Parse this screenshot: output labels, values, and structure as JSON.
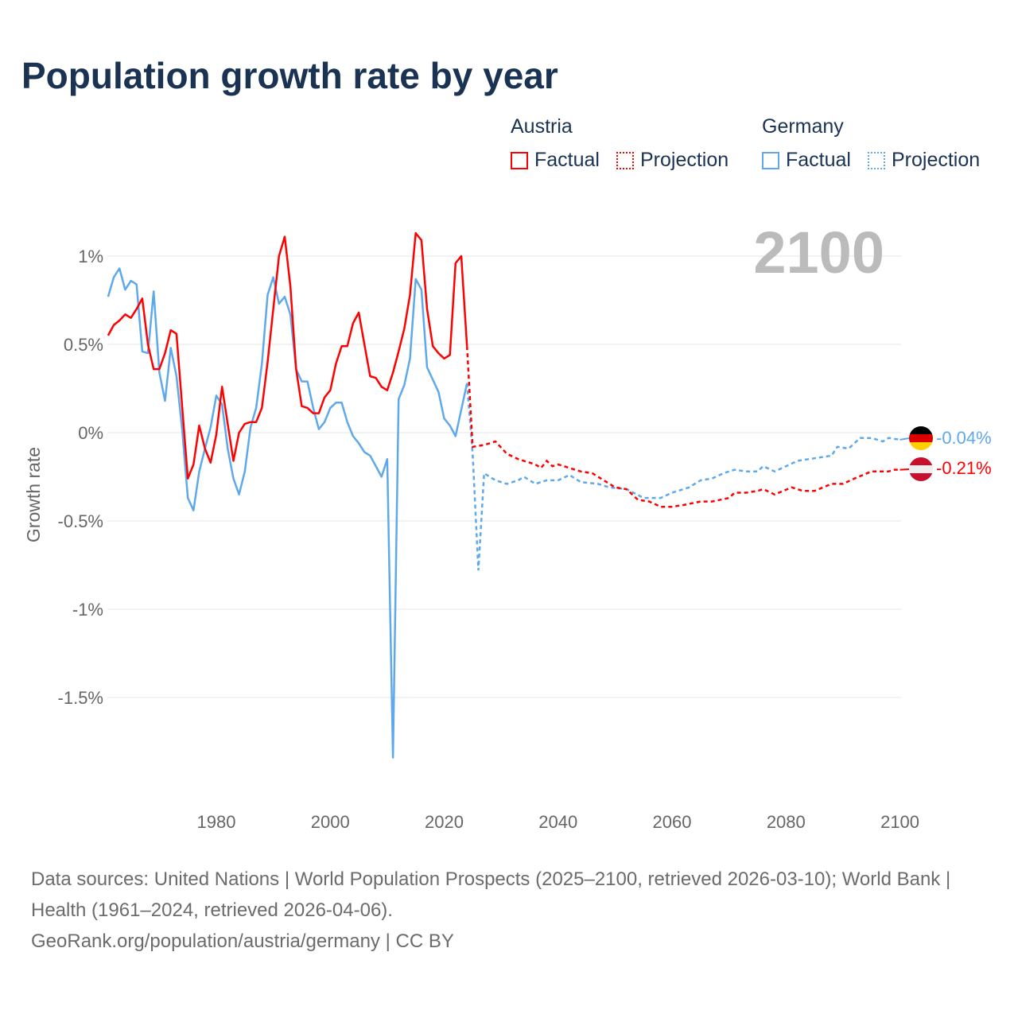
{
  "title": "Population growth rate by year",
  "legend": {
    "austria": {
      "name": "Austria",
      "factual": "Factual",
      "projection": "Projection"
    },
    "germany": {
      "name": "Germany",
      "factual": "Factual",
      "projection": "Projection"
    }
  },
  "footer": {
    "sources": "Data sources: United Nations | World Population Prospects (2025–2100, retrieved 2026-03-10); World Bank | Health (1961–2024, retrieved 2026-04-06).",
    "credit": "GeoRank.org/population/austria/germany | CC BY"
  },
  "colors": {
    "austria": "#ff0000",
    "germany": "#5ea8ec",
    "title": "#1b3353",
    "year": "#bbbbbb"
  },
  "chart_data": {
    "type": "line",
    "title": "Population growth rate by year",
    "ylabel": "Growth rate",
    "xlabel": "",
    "current_year_label": "2100",
    "xlim": [
      1961,
      2100
    ],
    "ylim": [
      -1.9,
      1.15
    ],
    "yticks": [
      1,
      0.5,
      0,
      -0.5,
      -1,
      -1.5
    ],
    "ytick_labels": [
      "1%",
      "0.5%",
      "0%",
      "-0.5%",
      "-1%",
      "-1.5%"
    ],
    "xticks": [
      1980,
      2000,
      2020,
      2040,
      2060,
      2080,
      2100
    ],
    "xtick_labels": [
      "1980",
      "2000",
      "2020",
      "2040",
      "2060",
      "2080",
      "2100"
    ],
    "grid": true,
    "series": [
      {
        "name": "Austria",
        "color": "#ff0000",
        "end_label": "-0.21%",
        "factual": {
          "start_year": 1961,
          "values": [
            0.55,
            0.61,
            0.635,
            0.67,
            0.65,
            0.7,
            0.76,
            0.5,
            0.36,
            0.36,
            0.45,
            0.58,
            0.56,
            0.15,
            -0.26,
            -0.18,
            0.04,
            -0.09,
            -0.17,
            -0.01,
            0.26,
            0.05,
            -0.16,
            0.0,
            0.05,
            0.06,
            0.06,
            0.14,
            0.4,
            0.7,
            1.0,
            1.11,
            0.83,
            0.36,
            0.15,
            0.14,
            0.11,
            0.11,
            0.2,
            0.24,
            0.39,
            0.49,
            0.49,
            0.62,
            0.68,
            0.5,
            0.32,
            0.31,
            0.26,
            0.24,
            0.34,
            0.46,
            0.59,
            0.78,
            1.13,
            1.09,
            0.7,
            0.49,
            0.45,
            0.42,
            0.44,
            0.96,
            1.0,
            0.49
          ]
        },
        "projection": [
          [
            2024,
            0.49
          ],
          [
            2025,
            -0.08
          ],
          [
            2027,
            -0.07
          ],
          [
            2029,
            -0.05
          ],
          [
            2031,
            -0.12
          ],
          [
            2033,
            -0.15
          ],
          [
            2035,
            -0.17
          ],
          [
            2036,
            -0.18
          ],
          [
            2037,
            -0.2
          ],
          [
            2038,
            -0.16
          ],
          [
            2039,
            -0.19
          ],
          [
            2040,
            -0.18
          ],
          [
            2042,
            -0.2
          ],
          [
            2044,
            -0.22
          ],
          [
            2046,
            -0.23
          ],
          [
            2048,
            -0.27
          ],
          [
            2050,
            -0.31
          ],
          [
            2052,
            -0.32
          ],
          [
            2054,
            -0.38
          ],
          [
            2056,
            -0.39
          ],
          [
            2058,
            -0.42
          ],
          [
            2060,
            -0.42
          ],
          [
            2062,
            -0.41
          ],
          [
            2065,
            -0.39
          ],
          [
            2067,
            -0.39
          ],
          [
            2070,
            -0.37
          ],
          [
            2071,
            -0.34
          ],
          [
            2073,
            -0.34
          ],
          [
            2075,
            -0.33
          ],
          [
            2076,
            -0.32
          ],
          [
            2078,
            -0.35
          ],
          [
            2081,
            -0.31
          ],
          [
            2083,
            -0.33
          ],
          [
            2085,
            -0.33
          ],
          [
            2088,
            -0.29
          ],
          [
            2090,
            -0.29
          ],
          [
            2092,
            -0.26
          ],
          [
            2095,
            -0.22
          ],
          [
            2098,
            -0.22
          ],
          [
            2099,
            -0.21
          ],
          [
            2100,
            -0.21
          ]
        ]
      },
      {
        "name": "Germany",
        "color": "#5ea8ec",
        "end_label": "-0.04%",
        "factual": {
          "start_year": 1961,
          "values": [
            0.77,
            0.88,
            0.93,
            0.81,
            0.86,
            0.84,
            0.46,
            0.45,
            0.8,
            0.34,
            0.18,
            0.48,
            0.32,
            0.02,
            -0.37,
            -0.44,
            -0.22,
            -0.09,
            0.03,
            0.21,
            0.16,
            -0.09,
            -0.26,
            -0.35,
            -0.22,
            0.03,
            0.14,
            0.39,
            0.78,
            0.88,
            0.73,
            0.77,
            0.67,
            0.36,
            0.29,
            0.29,
            0.14,
            0.02,
            0.06,
            0.14,
            0.17,
            0.17,
            0.06,
            -0.02,
            -0.06,
            -0.11,
            -0.13,
            -0.19,
            -0.25,
            -0.15,
            -1.84,
            0.19,
            0.27,
            0.42,
            0.87,
            0.81,
            0.37,
            0.3,
            0.23,
            0.08,
            0.04,
            -0.02,
            0.13,
            0.28
          ]
        },
        "projection": [
          [
            2024,
            0.28
          ],
          [
            2025,
            -0.12
          ],
          [
            2026,
            -0.78
          ],
          [
            2027,
            -0.23
          ],
          [
            2029,
            -0.27
          ],
          [
            2031,
            -0.29
          ],
          [
            2033,
            -0.27
          ],
          [
            2034,
            -0.25
          ],
          [
            2036,
            -0.29
          ],
          [
            2038,
            -0.27
          ],
          [
            2040,
            -0.27
          ],
          [
            2042,
            -0.24
          ],
          [
            2044,
            -0.28
          ],
          [
            2047,
            -0.29
          ],
          [
            2049,
            -0.31
          ],
          [
            2052,
            -0.32
          ],
          [
            2055,
            -0.37
          ],
          [
            2058,
            -0.37
          ],
          [
            2060,
            -0.34
          ],
          [
            2063,
            -0.31
          ],
          [
            2065,
            -0.27
          ],
          [
            2067,
            -0.26
          ],
          [
            2069,
            -0.23
          ],
          [
            2071,
            -0.21
          ],
          [
            2073,
            -0.22
          ],
          [
            2075,
            -0.22
          ],
          [
            2076,
            -0.19
          ],
          [
            2078,
            -0.22
          ],
          [
            2080,
            -0.19
          ],
          [
            2082,
            -0.16
          ],
          [
            2084,
            -0.15
          ],
          [
            2086,
            -0.14
          ],
          [
            2088,
            -0.13
          ],
          [
            2089,
            -0.08
          ],
          [
            2091,
            -0.09
          ],
          [
            2093,
            -0.03
          ],
          [
            2095,
            -0.03
          ],
          [
            2097,
            -0.05
          ],
          [
            2098,
            -0.03
          ],
          [
            2100,
            -0.04
          ]
        ]
      }
    ]
  }
}
